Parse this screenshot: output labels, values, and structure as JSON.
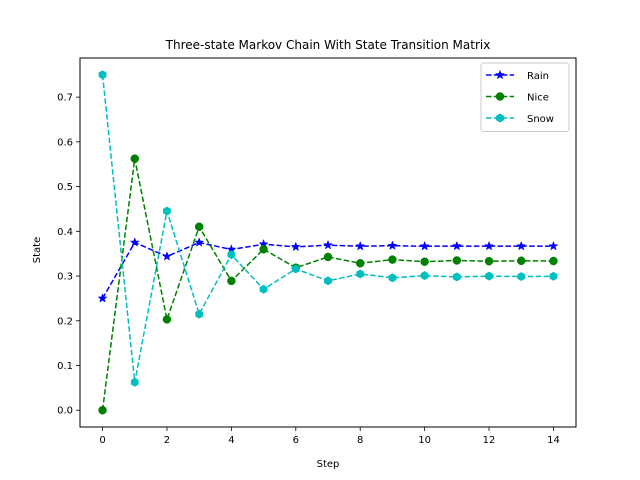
{
  "chart_data": {
    "type": "line",
    "title": "Three-state Markov Chain With State Transition Matrix",
    "xlabel": "Step",
    "ylabel": "State",
    "xlim": [
      -0.7,
      14.7
    ],
    "ylim": [
      -0.0375,
      0.7875
    ],
    "xticks": [
      0,
      2,
      4,
      6,
      8,
      10,
      12,
      14
    ],
    "yticks": [
      0.0,
      0.1,
      0.2,
      0.3,
      0.4,
      0.5,
      0.6,
      0.7
    ],
    "grid": false,
    "legend_position": "top-right",
    "x": [
      0,
      1,
      2,
      3,
      4,
      5,
      6,
      7,
      8,
      9,
      10,
      11,
      12,
      13,
      14
    ],
    "series": [
      {
        "name": "Rain",
        "color": "#0000ff",
        "marker": "star",
        "values": [
          0.25,
          0.375,
          0.3438,
          0.375,
          0.3594,
          0.3711,
          0.3652,
          0.3691,
          0.3667,
          0.3679,
          0.3667,
          0.367,
          0.3669,
          0.3669,
          0.3669
        ]
      },
      {
        "name": "Nice",
        "color": "#008000",
        "marker": "circle",
        "values": [
          0.0,
          0.5625,
          0.2031,
          0.4102,
          0.2891,
          0.3599,
          0.3186,
          0.3427,
          0.3286,
          0.3368,
          0.3321,
          0.3348,
          0.3332,
          0.3341,
          0.3336
        ]
      },
      {
        "name": "Snow",
        "color": "#00bfbf",
        "marker": "hexagon",
        "values": [
          0.75,
          0.0625,
          0.4453,
          0.2148,
          0.3477,
          0.2705,
          0.3159,
          0.2893,
          0.3047,
          0.296,
          0.301,
          0.2981,
          0.2998,
          0.2989,
          0.2994
        ]
      }
    ]
  }
}
